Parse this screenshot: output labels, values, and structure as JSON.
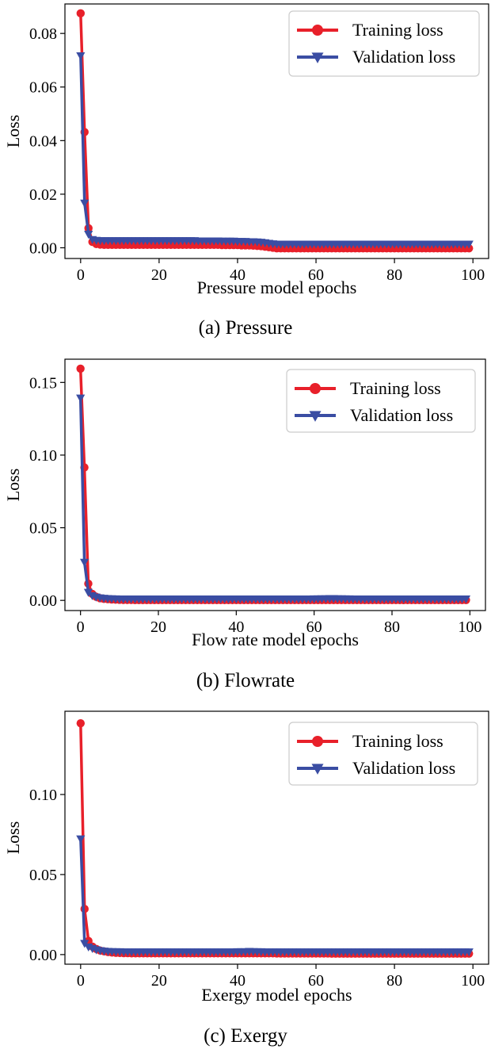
{
  "chart_data": [
    {
      "type": "line",
      "caption": "(a) Pressure",
      "xlabel": "Pressure model epochs",
      "ylabel": "Loss",
      "xlim": [
        -4,
        104
      ],
      "ylim": [
        -0.004,
        0.091
      ],
      "xticks": [
        0,
        20,
        40,
        60,
        80,
        100
      ],
      "yticks": [
        0.0,
        0.02,
        0.04,
        0.06,
        0.08
      ],
      "ytick_labels": [
        "0.00",
        "0.02",
        "0.04",
        "0.06",
        "0.08"
      ],
      "legend_position": "top-right",
      "grid": false,
      "x": [
        0,
        1,
        2,
        3,
        4,
        5,
        6,
        7,
        8,
        9,
        10,
        11,
        12,
        13,
        14,
        15,
        16,
        17,
        18,
        19,
        20,
        21,
        22,
        23,
        24,
        25,
        26,
        27,
        28,
        29,
        30,
        31,
        32,
        33,
        34,
        35,
        36,
        37,
        38,
        39,
        40,
        41,
        42,
        43,
        44,
        45,
        46,
        47,
        48,
        49,
        50,
        51,
        52,
        53,
        54,
        55,
        56,
        57,
        58,
        59,
        60,
        61,
        62,
        63,
        64,
        65,
        66,
        67,
        68,
        69,
        70,
        71,
        72,
        73,
        74,
        75,
        76,
        77,
        78,
        79,
        80,
        81,
        82,
        83,
        84,
        85,
        86,
        87,
        88,
        89,
        90,
        91,
        92,
        93,
        94,
        95,
        96,
        97,
        98,
        99
      ],
      "series": [
        {
          "name": "Training loss",
          "color": "#e8202a",
          "marker": "circle",
          "values": [
            0.0875,
            0.0432,
            0.0073,
            0.0022,
            0.0014,
            0.0012,
            0.0011,
            0.0011,
            0.0011,
            0.0011,
            0.0011,
            0.0011,
            0.0011,
            0.0011,
            0.0011,
            0.0011,
            0.0011,
            0.0011,
            0.0011,
            0.0011,
            0.0011,
            0.0011,
            0.0011,
            0.0011,
            0.0011,
            0.0011,
            0.0011,
            0.0011,
            0.0011,
            0.0011,
            0.0011,
            0.0011,
            0.0011,
            0.0011,
            0.0011,
            0.0011,
            0.001,
            0.001,
            0.001,
            0.001,
            0.001,
            0.0009,
            0.0009,
            0.0009,
            0.0008,
            0.0007,
            0.0006,
            0.0004,
            0.0002,
            0.0,
            -0.0002,
            -0.0002,
            -0.0002,
            -0.0002,
            -0.0002,
            -0.0002,
            -0.0002,
            -0.0002,
            -0.0002,
            -0.0002,
            -0.0002,
            -0.0002,
            -0.0002,
            -0.0002,
            -0.0002,
            -0.0002,
            -0.0002,
            -0.0002,
            -0.0002,
            -0.0002,
            -0.0002,
            -0.0002,
            -0.0002,
            -0.0002,
            -0.0002,
            -0.0002,
            -0.0002,
            -0.0002,
            -0.0002,
            -0.0002,
            -0.0002,
            -0.0002,
            -0.0002,
            -0.0002,
            -0.0002,
            -0.0002,
            -0.0002,
            -0.0002,
            -0.0002,
            -0.0002,
            -0.0002,
            -0.0002,
            -0.0002,
            -0.0002,
            -0.0002,
            -0.0002,
            -0.0002,
            -0.0002,
            -0.0002,
            -0.0002
          ]
        },
        {
          "name": "Validation loss",
          "color": "#3a4da3",
          "marker": "triangle-down",
          "values": [
            0.0718,
            0.0168,
            0.0052,
            0.0032,
            0.0029,
            0.0028,
            0.0028,
            0.0028,
            0.0028,
            0.0028,
            0.0028,
            0.0028,
            0.0028,
            0.0028,
            0.0028,
            0.0028,
            0.0028,
            0.0028,
            0.0028,
            0.0028,
            0.0028,
            0.0028,
            0.0028,
            0.0028,
            0.0028,
            0.0028,
            0.0028,
            0.0028,
            0.0028,
            0.0028,
            0.0027,
            0.0027,
            0.0027,
            0.0027,
            0.0027,
            0.0027,
            0.0026,
            0.0026,
            0.0026,
            0.0026,
            0.0025,
            0.0025,
            0.0025,
            0.0024,
            0.0024,
            0.0023,
            0.0022,
            0.002,
            0.0018,
            0.0016,
            0.0015,
            0.0015,
            0.0015,
            0.0015,
            0.0015,
            0.0015,
            0.0015,
            0.0015,
            0.0015,
            0.0015,
            0.0015,
            0.0015,
            0.0015,
            0.0015,
            0.0015,
            0.0015,
            0.0015,
            0.0015,
            0.0015,
            0.0015,
            0.0015,
            0.0015,
            0.0015,
            0.0015,
            0.0015,
            0.0015,
            0.0015,
            0.0015,
            0.0015,
            0.0015,
            0.0015,
            0.0015,
            0.0015,
            0.0015,
            0.0015,
            0.0015,
            0.0015,
            0.0015,
            0.0015,
            0.0015,
            0.0015,
            0.0015,
            0.0015,
            0.0015,
            0.0015,
            0.0015,
            0.0015,
            0.0015,
            0.0015,
            0.0015
          ]
        }
      ]
    },
    {
      "type": "line",
      "caption": "(b) Flowrate",
      "xlabel": "Flow rate model epochs",
      "ylabel": "Loss",
      "xlim": [
        -4,
        104
      ],
      "ylim": [
        -0.007,
        0.166
      ],
      "xticks": [
        0,
        20,
        40,
        60,
        80,
        100
      ],
      "yticks": [
        0.0,
        0.05,
        0.1,
        0.15
      ],
      "ytick_labels": [
        "0.00",
        "0.05",
        "0.10",
        "0.15"
      ],
      "legend_position": "top-right",
      "grid": false,
      "x": [
        0,
        1,
        2,
        3,
        4,
        5,
        6,
        7,
        8,
        9,
        10,
        11,
        12,
        13,
        14,
        15,
        16,
        17,
        18,
        19,
        20,
        21,
        22,
        23,
        24,
        25,
        26,
        27,
        28,
        29,
        30,
        31,
        32,
        33,
        34,
        35,
        36,
        37,
        38,
        39,
        40,
        41,
        42,
        43,
        44,
        45,
        46,
        47,
        48,
        49,
        50,
        51,
        52,
        53,
        54,
        55,
        56,
        57,
        58,
        59,
        60,
        61,
        62,
        63,
        64,
        65,
        66,
        67,
        68,
        69,
        70,
        71,
        72,
        73,
        74,
        75,
        76,
        77,
        78,
        79,
        80,
        81,
        82,
        83,
        84,
        85,
        86,
        87,
        88,
        89,
        90,
        91,
        92,
        93,
        94,
        95,
        96,
        97,
        98,
        99
      ],
      "series": [
        {
          "name": "Training loss",
          "color": "#e8202a",
          "marker": "circle",
          "values": [
            0.1595,
            0.0915,
            0.0115,
            0.0045,
            0.0025,
            0.0015,
            0.001,
            0.0008,
            0.0006,
            0.0005,
            0.0004,
            0.0003,
            0.0003,
            0.0003,
            0.0002,
            0.0002,
            0.0002,
            0.0002,
            0.0002,
            0.0002,
            0.0002,
            0.0002,
            0.0002,
            0.0002,
            0.0002,
            0.0002,
            0.0002,
            0.0002,
            0.0002,
            0.0002,
            0.0002,
            0.0002,
            0.0002,
            0.0002,
            0.0002,
            0.0002,
            0.0002,
            0.0002,
            0.0002,
            0.0002,
            0.0002,
            0.0002,
            0.0002,
            0.0002,
            0.0002,
            0.0002,
            0.0002,
            0.0002,
            0.0002,
            0.0002,
            0.0002,
            0.0002,
            0.0002,
            0.0002,
            0.0002,
            0.0002,
            0.0002,
            0.0002,
            0.0002,
            0.0002,
            0.0002,
            0.0002,
            0.0002,
            0.0002,
            0.0002,
            0.0002,
            0.0002,
            0.0002,
            0.0002,
            0.0002,
            0.0002,
            0.0002,
            0.0002,
            0.0002,
            0.0002,
            0.0002,
            0.0002,
            0.0002,
            0.0002,
            0.0002,
            0.0002,
            0.0002,
            0.0002,
            0.0002,
            0.0002,
            0.0002,
            0.0002,
            0.0002,
            0.0002,
            0.0002,
            0.0002,
            0.0002,
            0.0002,
            0.0002,
            0.0002,
            0.0002,
            0.0002,
            0.0002,
            0.0002,
            0.0002
          ]
        },
        {
          "name": "Validation loss",
          "color": "#3a4da3",
          "marker": "triangle-down",
          "values": [
            0.1395,
            0.0265,
            0.0058,
            0.0035,
            0.0025,
            0.002,
            0.0017,
            0.0015,
            0.0014,
            0.0013,
            0.0012,
            0.0012,
            0.0012,
            0.0012,
            0.0012,
            0.0012,
            0.0012,
            0.0012,
            0.0012,
            0.0012,
            0.0012,
            0.0012,
            0.0012,
            0.0012,
            0.0012,
            0.0012,
            0.0012,
            0.0012,
            0.0012,
            0.0012,
            0.0012,
            0.0012,
            0.0012,
            0.0012,
            0.0012,
            0.0012,
            0.0012,
            0.0012,
            0.0012,
            0.0012,
            0.0012,
            0.0012,
            0.0012,
            0.0012,
            0.0012,
            0.0012,
            0.0012,
            0.0012,
            0.0012,
            0.0012,
            0.0012,
            0.0012,
            0.0012,
            0.0012,
            0.0012,
            0.0012,
            0.0012,
            0.0012,
            0.0012,
            0.0012,
            0.0013,
            0.0013,
            0.0014,
            0.0014,
            0.0015,
            0.0015,
            0.0014,
            0.0014,
            0.0013,
            0.0013,
            0.0012,
            0.0012,
            0.0012,
            0.0012,
            0.0012,
            0.0012,
            0.0012,
            0.0012,
            0.0012,
            0.0012,
            0.0012,
            0.0012,
            0.0012,
            0.0012,
            0.0012,
            0.0012,
            0.0012,
            0.0012,
            0.0012,
            0.0012,
            0.0012,
            0.0012,
            0.0012,
            0.0012,
            0.0012,
            0.0012,
            0.0012,
            0.0012,
            0.0012,
            0.0012
          ]
        }
      ]
    },
    {
      "type": "line",
      "caption": "(c) Exergy",
      "xlabel": "Exergy model epochs",
      "ylabel": "Loss",
      "xlim": [
        -4,
        104
      ],
      "ylim": [
        -0.006,
        0.152
      ],
      "xticks": [
        0,
        20,
        40,
        60,
        80,
        100
      ],
      "yticks": [
        0.0,
        0.05,
        0.1
      ],
      "ytick_labels": [
        "0.00",
        "0.05",
        "0.10"
      ],
      "legend_position": "top-right",
      "grid": false,
      "x": [
        0,
        1,
        2,
        3,
        4,
        5,
        6,
        7,
        8,
        9,
        10,
        11,
        12,
        13,
        14,
        15,
        16,
        17,
        18,
        19,
        20,
        21,
        22,
        23,
        24,
        25,
        26,
        27,
        28,
        29,
        30,
        31,
        32,
        33,
        34,
        35,
        36,
        37,
        38,
        39,
        40,
        41,
        42,
        43,
        44,
        45,
        46,
        47,
        48,
        49,
        50,
        51,
        52,
        53,
        54,
        55,
        56,
        57,
        58,
        59,
        60,
        61,
        62,
        63,
        64,
        65,
        66,
        67,
        68,
        69,
        70,
        71,
        72,
        73,
        74,
        75,
        76,
        77,
        78,
        79,
        80,
        81,
        82,
        83,
        84,
        85,
        86,
        87,
        88,
        89,
        90,
        91,
        92,
        93,
        94,
        95,
        96,
        97,
        98,
        99
      ],
      "series": [
        {
          "name": "Training loss",
          "color": "#e8202a",
          "marker": "circle",
          "values": [
            0.1445,
            0.0285,
            0.0085,
            0.005,
            0.0035,
            0.0025,
            0.002,
            0.0016,
            0.0013,
            0.0011,
            0.001,
            0.0009,
            0.0009,
            0.0008,
            0.0008,
            0.0008,
            0.0008,
            0.0008,
            0.0008,
            0.0008,
            0.0008,
            0.0008,
            0.0008,
            0.0008,
            0.0008,
            0.0008,
            0.0008,
            0.0008,
            0.0008,
            0.0008,
            0.0008,
            0.0008,
            0.0008,
            0.0008,
            0.0008,
            0.0008,
            0.0008,
            0.0008,
            0.0008,
            0.0008,
            0.0008,
            0.0008,
            0.0008,
            0.0008,
            0.0008,
            0.0008,
            0.0008,
            0.0008,
            0.0008,
            0.0008,
            0.0007,
            0.0007,
            0.0007,
            0.0007,
            0.0007,
            0.0007,
            0.0007,
            0.0007,
            0.0007,
            0.0007,
            0.0007,
            0.0007,
            0.0007,
            0.0007,
            0.0006,
            0.0006,
            0.0006,
            0.0006,
            0.0006,
            0.0006,
            0.0006,
            0.0006,
            0.0006,
            0.0006,
            0.0006,
            0.0006,
            0.0006,
            0.0006,
            0.0006,
            0.0006,
            0.0006,
            0.0006,
            0.0006,
            0.0006,
            0.0006,
            0.0006,
            0.0006,
            0.0006,
            0.0006,
            0.0006,
            0.0006,
            0.0006,
            0.0006,
            0.0006,
            0.0006,
            0.0006,
            0.0006,
            0.0006,
            0.0006,
            0.0006
          ]
        },
        {
          "name": "Validation loss",
          "color": "#3a4da3",
          "marker": "triangle-down",
          "values": [
            0.0725,
            0.0072,
            0.005,
            0.004,
            0.0032,
            0.0027,
            0.0024,
            0.0022,
            0.0021,
            0.002,
            0.002,
            0.0019,
            0.0019,
            0.0019,
            0.0019,
            0.0019,
            0.0019,
            0.0019,
            0.0019,
            0.0019,
            0.0019,
            0.0019,
            0.0019,
            0.0019,
            0.0019,
            0.0019,
            0.0019,
            0.0019,
            0.0019,
            0.0019,
            0.0019,
            0.0019,
            0.0019,
            0.0019,
            0.0019,
            0.0019,
            0.0019,
            0.0019,
            0.0019,
            0.0019,
            0.002,
            0.002,
            0.002,
            0.0022,
            0.0021,
            0.002,
            0.002,
            0.0019,
            0.0019,
            0.0019,
            0.0019,
            0.0019,
            0.0019,
            0.0019,
            0.0019,
            0.0019,
            0.0019,
            0.0019,
            0.0019,
            0.0019,
            0.0019,
            0.0019,
            0.0019,
            0.0019,
            0.0019,
            0.0019,
            0.0019,
            0.0019,
            0.0019,
            0.0019,
            0.0019,
            0.0019,
            0.0019,
            0.0019,
            0.0019,
            0.0019,
            0.0019,
            0.0019,
            0.0019,
            0.0019,
            0.0019,
            0.0019,
            0.0019,
            0.0019,
            0.0019,
            0.0019,
            0.0019,
            0.0019,
            0.0019,
            0.0019,
            0.0019,
            0.0019,
            0.0019,
            0.0019,
            0.0019,
            0.0019,
            0.0019,
            0.0019,
            0.0019,
            0.0019
          ]
        }
      ]
    }
  ]
}
